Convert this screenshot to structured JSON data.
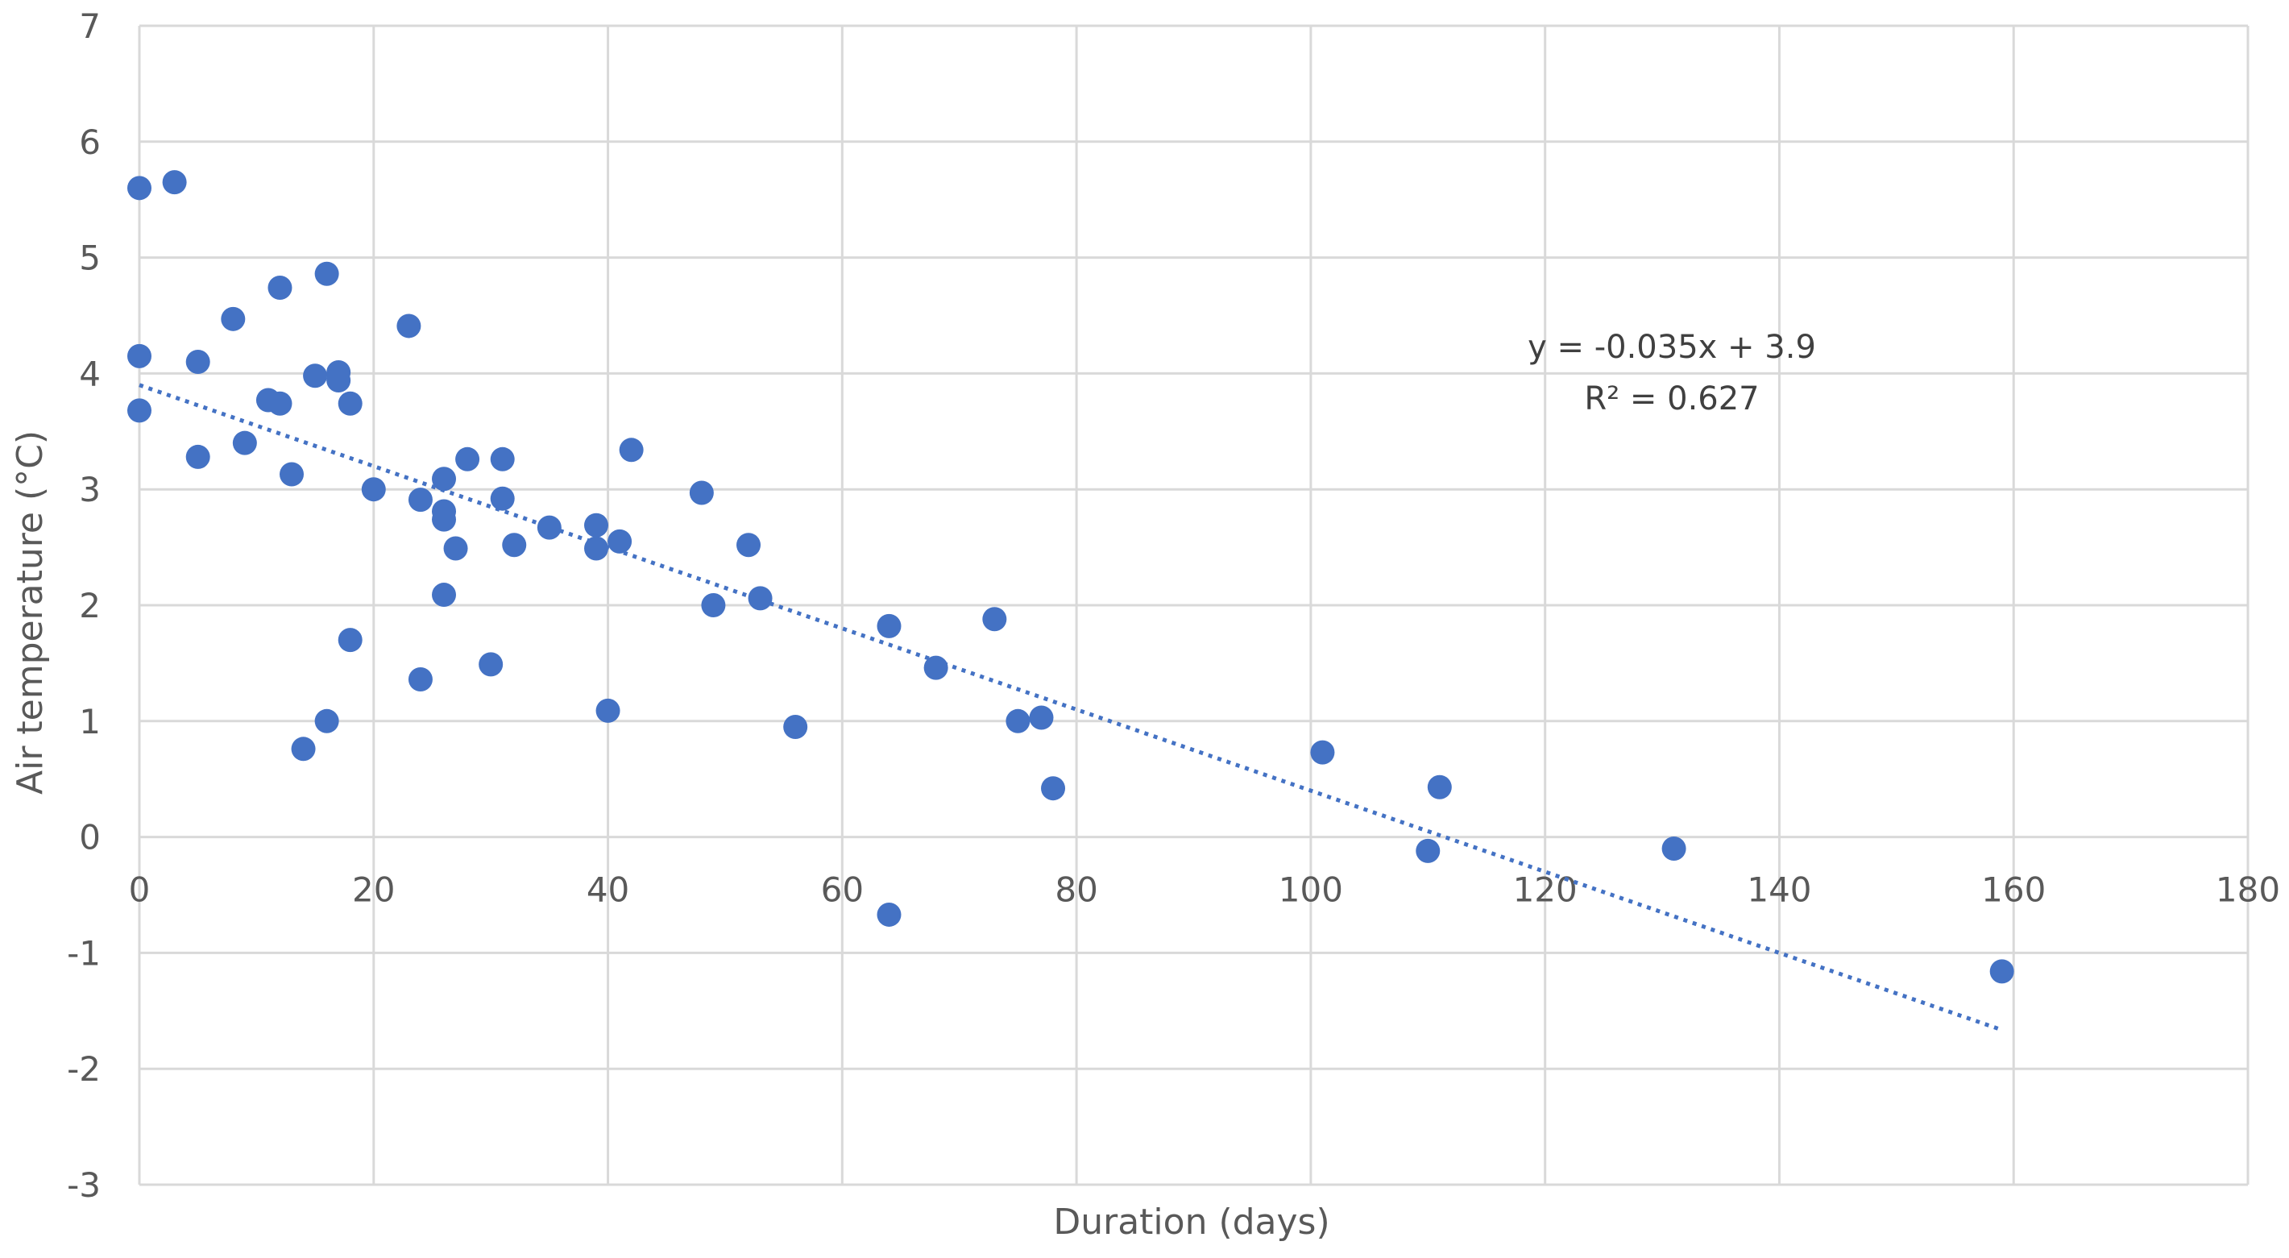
{
  "chart_data": {
    "type": "scatter",
    "xlabel": "Duration (days)",
    "ylabel": "Air temperature  (°C)",
    "xlim": [
      0,
      180
    ],
    "ylim": [
      -3,
      7
    ],
    "xticks": [
      0,
      20,
      40,
      60,
      80,
      100,
      120,
      140,
      160,
      180
    ],
    "yticks": [
      -3,
      -2,
      -1,
      0,
      1,
      2,
      3,
      4,
      5,
      6,
      7
    ],
    "grid": true,
    "legend": "none",
    "marker_color": "#4472C4",
    "trendline": {
      "equation": "y = -0.035x + 3.9",
      "r_squared": "R² = 0.627",
      "slope": -0.035,
      "intercept": 3.9,
      "x_range": [
        0,
        159
      ],
      "style": "dotted",
      "color": "#4472C4"
    },
    "points": [
      [
        0,
        5.6
      ],
      [
        3,
        5.65
      ],
      [
        0,
        4.15
      ],
      [
        0,
        3.68
      ],
      [
        5,
        4.1
      ],
      [
        5,
        3.28
      ],
      [
        8,
        4.47
      ],
      [
        9,
        3.4
      ],
      [
        11,
        3.77
      ],
      [
        12,
        3.74
      ],
      [
        12,
        4.74
      ],
      [
        13,
        3.13
      ],
      [
        14,
        0.76
      ],
      [
        15,
        3.98
      ],
      [
        16,
        4.86
      ],
      [
        16,
        1.0
      ],
      [
        17,
        4.01
      ],
      [
        17,
        3.94
      ],
      [
        18,
        3.74
      ],
      [
        18,
        1.7
      ],
      [
        20,
        3.0
      ],
      [
        23,
        4.41
      ],
      [
        24,
        2.91
      ],
      [
        24,
        1.36
      ],
      [
        26,
        3.09
      ],
      [
        26,
        2.81
      ],
      [
        26,
        2.74
      ],
      [
        26,
        2.09
      ],
      [
        27,
        2.49
      ],
      [
        28,
        3.26
      ],
      [
        30,
        1.49
      ],
      [
        31,
        3.26
      ],
      [
        31,
        2.92
      ],
      [
        32,
        2.52
      ],
      [
        35,
        2.67
      ],
      [
        39,
        2.69
      ],
      [
        39,
        2.49
      ],
      [
        40,
        1.09
      ],
      [
        41,
        2.55
      ],
      [
        42,
        3.34
      ],
      [
        48,
        2.97
      ],
      [
        49,
        2.0
      ],
      [
        52,
        2.52
      ],
      [
        53,
        2.06
      ],
      [
        56,
        0.95
      ],
      [
        64,
        1.82
      ],
      [
        64,
        -0.67
      ],
      [
        68,
        1.46
      ],
      [
        73,
        1.88
      ],
      [
        75,
        1.0
      ],
      [
        77,
        1.03
      ],
      [
        78,
        0.42
      ],
      [
        101,
        0.73
      ],
      [
        110,
        -0.12
      ],
      [
        111,
        0.43
      ],
      [
        131,
        -0.1
      ],
      [
        159,
        -1.16
      ]
    ]
  }
}
